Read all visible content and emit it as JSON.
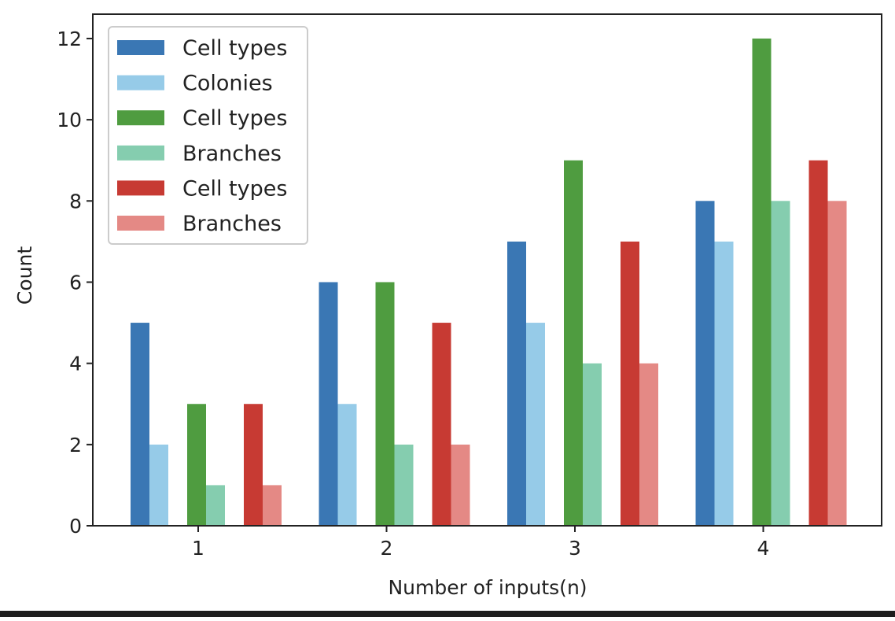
{
  "chart_data": {
    "type": "bar",
    "title": "",
    "xlabel": "Number of inputs(n)",
    "ylabel": "Count",
    "categories": [
      "1",
      "2",
      "3",
      "4"
    ],
    "ylim": [
      0,
      12.6
    ],
    "yticks": [
      0,
      2,
      4,
      6,
      8,
      10,
      12
    ],
    "grid": false,
    "legend_position": "top-left",
    "series": [
      {
        "name": "Cell types",
        "color": "#3a77b4",
        "values": [
          5,
          6,
          7,
          8
        ]
      },
      {
        "name": "Colonies",
        "color": "#96cbe8",
        "values": [
          2,
          3,
          5,
          7
        ]
      },
      {
        "name": "Cell types",
        "color": "#4f9c40",
        "values": [
          3,
          6,
          9,
          12
        ]
      },
      {
        "name": "Branches",
        "color": "#85cdaf",
        "values": [
          1,
          2,
          4,
          8
        ]
      },
      {
        "name": "Cell types",
        "color": "#c73a33",
        "values": [
          3,
          5,
          7,
          9
        ]
      },
      {
        "name": "Branches",
        "color": "#e48985",
        "values": [
          1,
          2,
          4,
          8
        ]
      }
    ]
  }
}
